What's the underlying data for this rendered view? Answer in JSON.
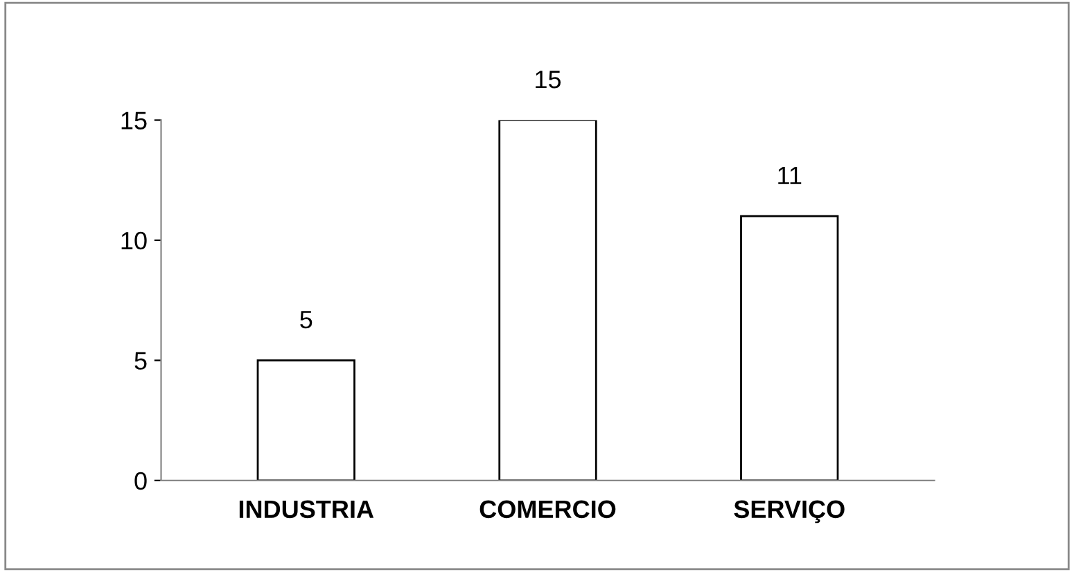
{
  "chart_data": {
    "type": "bar",
    "categories": [
      "INDUSTRIA",
      "COMERCIO",
      "SERVIÇO"
    ],
    "values": [
      5,
      15,
      11
    ],
    "color": "#ffffff",
    "ylim": [
      0,
      15
    ],
    "yticks": [
      0,
      5,
      10,
      15
    ],
    "grid": false,
    "data_labels": true
  }
}
